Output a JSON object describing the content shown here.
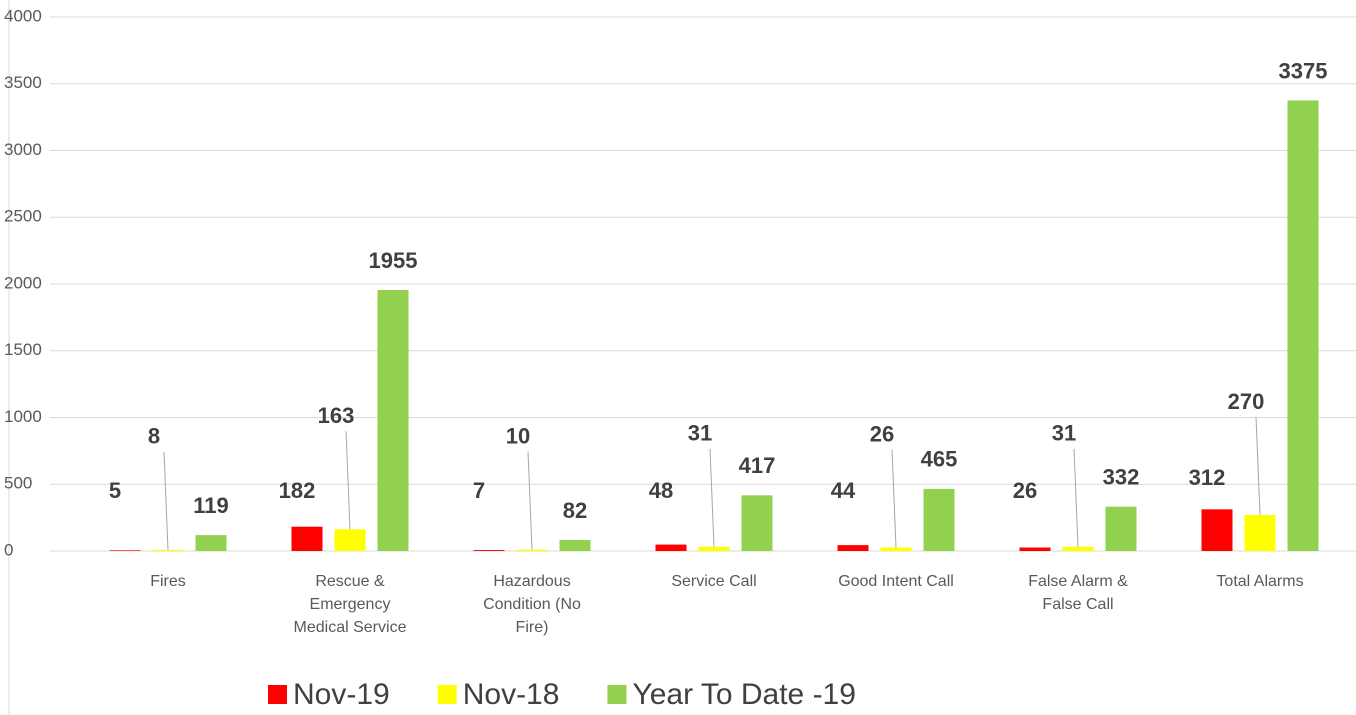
{
  "chart_data": {
    "type": "bar",
    "categories": [
      "Fires",
      "Rescue & Emergency Medical Service",
      "Hazardous Condition (No Fire)",
      "Service Call",
      "Good Intent Call",
      "False Alarm & False Call",
      "Total Alarms"
    ],
    "series": [
      {
        "name": "Nov-19",
        "color": "#ff0000",
        "values": [
          5,
          182,
          7,
          48,
          44,
          26,
          312
        ]
      },
      {
        "name": "Nov-18",
        "color": "#ffff00",
        "values": [
          8,
          163,
          10,
          31,
          26,
          31,
          270
        ]
      },
      {
        "name": "Year To Date -19",
        "color": "#92d050",
        "values": [
          119,
          1955,
          82,
          417,
          465,
          332,
          3375
        ]
      }
    ],
    "ylim": [
      0,
      4000
    ],
    "yticks": [
      0,
      500,
      1000,
      1500,
      2000,
      2500,
      3000,
      3500,
      4000
    ],
    "grid": true,
    "legend": "bottom"
  }
}
